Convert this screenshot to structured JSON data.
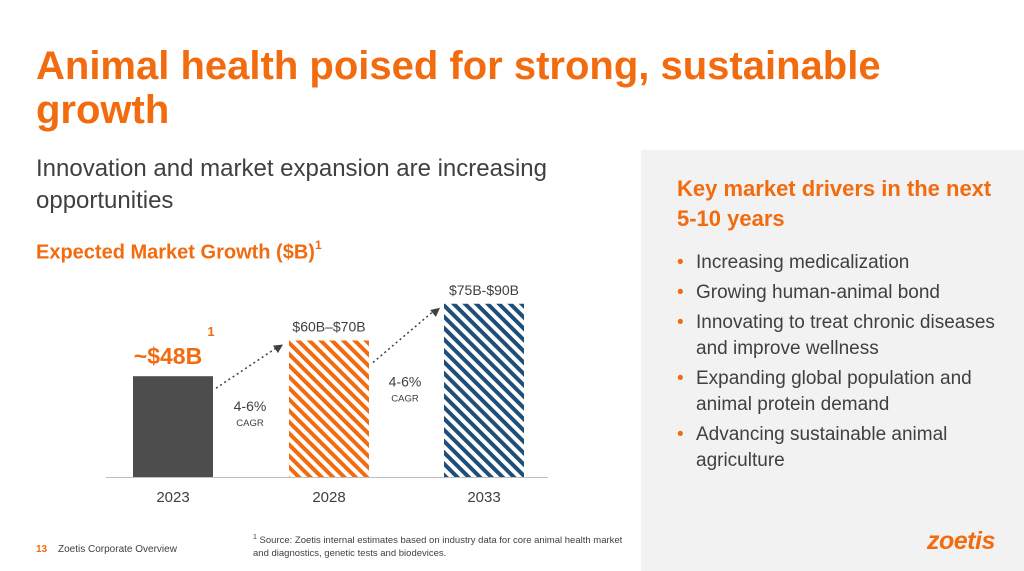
{
  "title": "Animal health poised for strong, sustainable growth",
  "subtitle": "Innovation and market expansion are increasing opportunities",
  "chart_heading": "Expected Market Growth ($B)",
  "chart_heading_sup": "1",
  "chart_data": {
    "type": "bar",
    "title": "Expected Market Growth ($B)",
    "categories": [
      "2023",
      "2028",
      "2033"
    ],
    "values": [
      48,
      65,
      82.5
    ],
    "ranges": [
      [
        48,
        48
      ],
      [
        60,
        70
      ],
      [
        75,
        90
      ]
    ],
    "value_labels": [
      "~$48B",
      "$60B–$70B",
      "$75B-$90B"
    ],
    "value_label_sup": "1",
    "growth_annotations": [
      {
        "from": "2023",
        "to": "2028",
        "rate": "4-6%",
        "unit": "CAGR"
      },
      {
        "from": "2028",
        "to": "2033",
        "rate": "4-6%",
        "unit": "CAGR"
      }
    ],
    "ylim": [
      0,
      90
    ],
    "colors": [
      "#4d4d4d",
      "#f26b0f",
      "#1f4e79"
    ],
    "patterns": [
      "solid",
      "diagonal-stripes",
      "diagonal-stripes"
    ],
    "grid": false,
    "legend": "none"
  },
  "footnote": {
    "sup": "1",
    "text": "Source: Zoetis internal estimates based on industry data for core animal health market and diagnostics, genetic tests and biodevices."
  },
  "footer": {
    "page_number": "13",
    "label": "Zoetis Corporate Overview"
  },
  "sidebar": {
    "title": "Key market drivers in the next 5-10 years",
    "drivers": [
      "Increasing medicalization",
      "Growing human-animal bond",
      "Innovating to treat chronic diseases and improve wellness",
      "Expanding global population and animal protein demand",
      "Advancing sustainable animal agriculture"
    ]
  },
  "logo_text": "zoetis",
  "accent_color": "#f26b0f"
}
